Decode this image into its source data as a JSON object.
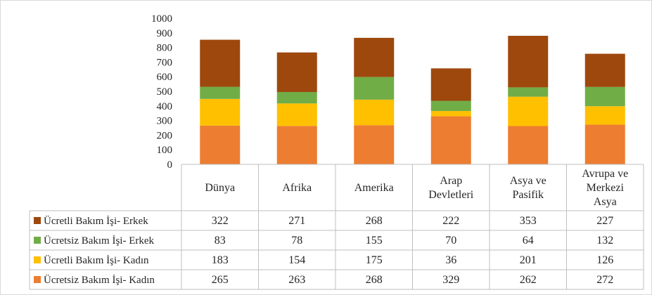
{
  "chart_data": {
    "type": "bar",
    "stacked": true,
    "categories": [
      [
        "Dünya"
      ],
      [
        "Afrika"
      ],
      [
        "Amerika"
      ],
      [
        "Arap",
        "Devletleri"
      ],
      [
        "Asya ve",
        "Pasifik"
      ],
      [
        "Avrupa ve",
        "Merkezi",
        "Asya"
      ]
    ],
    "ylim": [
      0,
      1000
    ],
    "yticks": [
      "0",
      "100",
      "200",
      "300",
      "400",
      "500",
      "600",
      "700",
      "800",
      "900",
      "1000"
    ],
    "grid": false,
    "legend": "table-left",
    "series": [
      {
        "name": "Ücretsiz Bakım İşi- Kadın",
        "color": "#ed7d31",
        "values": [
          265,
          263,
          268,
          329,
          262,
          272
        ]
      },
      {
        "name": "Ücretli Bakım İşi- Kadın",
        "color": "#ffc000",
        "values": [
          183,
          154,
          175,
          36,
          201,
          126
        ]
      },
      {
        "name": "Ücretsiz Bakım İşi- Erkek",
        "color": "#70ad47",
        "values": [
          83,
          78,
          155,
          70,
          64,
          132
        ]
      },
      {
        "name": "Ücretli Bakım İşi- Erkek",
        "color": "#9e480e",
        "values": [
          322,
          271,
          268,
          222,
          353,
          227
        ]
      }
    ],
    "table_row_order": [
      3,
      2,
      1,
      0
    ]
  }
}
